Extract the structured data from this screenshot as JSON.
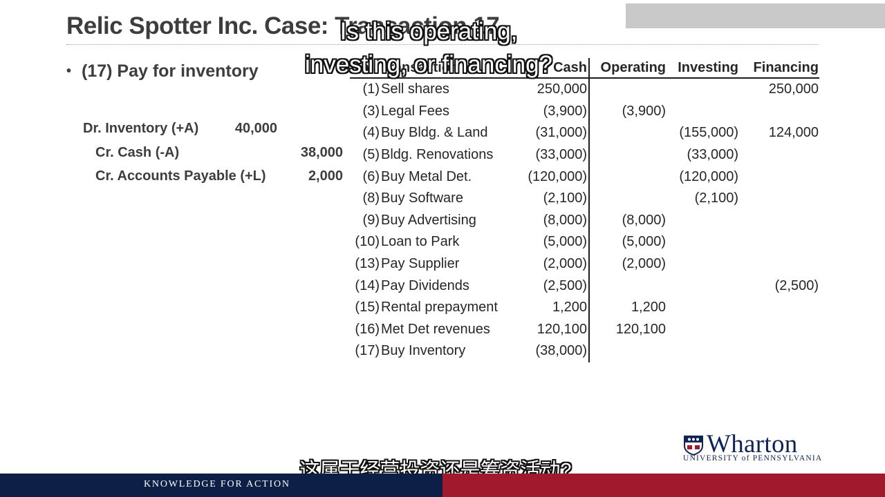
{
  "slide": {
    "title": "Relic Spotter Inc. Case: Transaction 17",
    "bullet": "(17) Pay for inventory"
  },
  "journal_entry": {
    "debit": {
      "label": "Dr. Inventory (+A)",
      "amount": "40,000"
    },
    "credits": [
      {
        "label": "Cr. Cash (-A)",
        "amount": "38,000"
      },
      {
        "label": "Cr. Accounts Payable (+L)",
        "amount": "2,000"
      }
    ]
  },
  "table": {
    "headers": [
      "No.",
      "Transaction",
      "Cash",
      "Operating",
      "Investing",
      "Financing"
    ],
    "rows": [
      {
        "no": "(1)",
        "desc": "Sell shares",
        "cash": "250,000",
        "operating": "",
        "investing": "",
        "financing": "250,000"
      },
      {
        "no": "(3)",
        "desc": "Legal Fees",
        "cash": "(3,900)",
        "operating": "(3,900)",
        "investing": "",
        "financing": ""
      },
      {
        "no": "(4)",
        "desc": "Buy Bldg. & Land",
        "cash": "(31,000)",
        "operating": "",
        "investing": "(155,000)",
        "financing": "124,000"
      },
      {
        "no": "(5)",
        "desc": "Bldg. Renovations",
        "cash": "(33,000)",
        "operating": "",
        "investing": "(33,000)",
        "financing": ""
      },
      {
        "no": "(6)",
        "desc": "Buy Metal Det.",
        "cash": "(120,000)",
        "operating": "",
        "investing": "(120,000)",
        "financing": ""
      },
      {
        "no": "(8)",
        "desc": "Buy Software",
        "cash": "(2,100)",
        "operating": "",
        "investing": "(2,100)",
        "financing": ""
      },
      {
        "no": "(9)",
        "desc": "Buy Advertising",
        "cash": "(8,000)",
        "operating": "(8,000)",
        "investing": "",
        "financing": ""
      },
      {
        "no": "(10)",
        "desc": "Loan to Park",
        "cash": "(5,000)",
        "operating": "(5,000)",
        "investing": "",
        "financing": ""
      },
      {
        "no": "(13)",
        "desc": "Pay Supplier",
        "cash": "(2,000)",
        "operating": "(2,000)",
        "investing": "",
        "financing": ""
      },
      {
        "no": "(14)",
        "desc": "Pay Dividends",
        "cash": "(2,500)",
        "operating": "",
        "investing": "",
        "financing": "(2,500)"
      },
      {
        "no": "(15)",
        "desc": "Rental prepayment",
        "cash": "1,200",
        "operating": "1,200",
        "investing": "",
        "financing": ""
      },
      {
        "no": "(16)",
        "desc": "Met Det revenues",
        "cash": "120,100",
        "operating": "120,100",
        "investing": "",
        "financing": ""
      },
      {
        "no": "(17)",
        "desc": "Buy Inventory",
        "cash": "(38,000)",
        "operating": "",
        "investing": "",
        "financing": ""
      }
    ]
  },
  "subtitles": {
    "english_line1": "Is this operating,",
    "english_line2": "investing, or financing?",
    "chinese": "这属于经营投资还是筹资活动?"
  },
  "branding": {
    "logo_word": "Wharton",
    "logo_university": "UNIVERSITY of PENNSYLVANIA",
    "footer_tagline": "KNOWLEDGE FOR ACTION",
    "colors": {
      "navy": "#0d1f46",
      "red": "#a0192d",
      "title_gray": "#3d3d3d"
    }
  }
}
